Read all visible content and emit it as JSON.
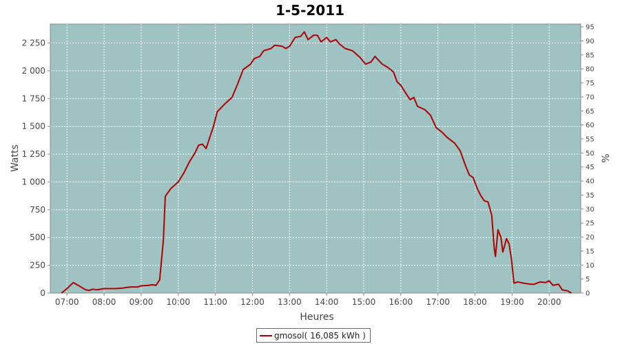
{
  "chart_data": {
    "type": "line",
    "title": "1-5-2011",
    "xlabel": "Heures",
    "ylabel": "Watts",
    "y2label": "%",
    "xlim": [
      6.55,
      20.85
    ],
    "ylim": [
      0,
      2420
    ],
    "y2lim": [
      0,
      96
    ],
    "x_ticks": [
      {
        "x": 7,
        "label": "07:00"
      },
      {
        "x": 8,
        "label": "08:00"
      },
      {
        "x": 9,
        "label": "09:00"
      },
      {
        "x": 10,
        "label": "10:00"
      },
      {
        "x": 11,
        "label": "11:00"
      },
      {
        "x": 12,
        "label": "12:00"
      },
      {
        "x": 13,
        "label": "13:00"
      },
      {
        "x": 14,
        "label": "14:00"
      },
      {
        "x": 15,
        "label": "15:00"
      },
      {
        "x": 16,
        "label": "16:00"
      },
      {
        "x": 17,
        "label": "17:00"
      },
      {
        "x": 18,
        "label": "18:00"
      },
      {
        "x": 19,
        "label": "19:00"
      },
      {
        "x": 20,
        "label": "20:00"
      }
    ],
    "y_ticks": [
      {
        "v": 0,
        "label": "0"
      },
      {
        "v": 250,
        "label": "250"
      },
      {
        "v": 500,
        "label": "500"
      },
      {
        "v": 750,
        "label": "750"
      },
      {
        "v": 1000,
        "label": "1 000"
      },
      {
        "v": 1250,
        "label": "1 250"
      },
      {
        "v": 1500,
        "label": "1 500"
      },
      {
        "v": 1750,
        "label": "1 750"
      },
      {
        "v": 2000,
        "label": "2 000"
      },
      {
        "v": 2250,
        "label": "2 250"
      }
    ],
    "y2_ticks": [
      {
        "v": 0,
        "label": "0"
      },
      {
        "v": 5,
        "label": "5"
      },
      {
        "v": 10,
        "label": "10"
      },
      {
        "v": 15,
        "label": "15"
      },
      {
        "v": 20,
        "label": "20"
      },
      {
        "v": 25,
        "label": "25"
      },
      {
        "v": 30,
        "label": "30"
      },
      {
        "v": 35,
        "label": "35"
      },
      {
        "v": 40,
        "label": "40"
      },
      {
        "v": 45,
        "label": "45"
      },
      {
        "v": 50,
        "label": "50"
      },
      {
        "v": 55,
        "label": "55"
      },
      {
        "v": 60,
        "label": "60"
      },
      {
        "v": 65,
        "label": "65"
      },
      {
        "v": 70,
        "label": "70"
      },
      {
        "v": 75,
        "label": "75"
      },
      {
        "v": 80,
        "label": "80"
      },
      {
        "v": 85,
        "label": "85"
      },
      {
        "v": 90,
        "label": "90"
      },
      {
        "v": 95,
        "label": "95"
      }
    ],
    "grid": true,
    "legend_position": "bottom-center",
    "colors": {
      "plot_bg": "#9fc2c2",
      "line": "#b00000",
      "grid": "#ffffff"
    },
    "series": [
      {
        "name": "gmosol( 16,085 kWh )",
        "points": [
          [
            6.85,
            0
          ],
          [
            7.0,
            40
          ],
          [
            7.17,
            95
          ],
          [
            7.3,
            70
          ],
          [
            7.5,
            30
          ],
          [
            7.6,
            25
          ],
          [
            7.7,
            35
          ],
          [
            7.8,
            30
          ],
          [
            8.0,
            40
          ],
          [
            8.3,
            40
          ],
          [
            8.5,
            45
          ],
          [
            8.7,
            55
          ],
          [
            8.9,
            55
          ],
          [
            9.0,
            65
          ],
          [
            9.2,
            70
          ],
          [
            9.3,
            75
          ],
          [
            9.4,
            70
          ],
          [
            9.5,
            120
          ],
          [
            9.6,
            480
          ],
          [
            9.65,
            870
          ],
          [
            9.8,
            940
          ],
          [
            10.0,
            1000
          ],
          [
            10.15,
            1080
          ],
          [
            10.3,
            1180
          ],
          [
            10.45,
            1260
          ],
          [
            10.55,
            1330
          ],
          [
            10.65,
            1340
          ],
          [
            10.75,
            1300
          ],
          [
            10.85,
            1400
          ],
          [
            10.95,
            1500
          ],
          [
            11.05,
            1630
          ],
          [
            11.25,
            1700
          ],
          [
            11.45,
            1760
          ],
          [
            11.6,
            1880
          ],
          [
            11.75,
            2010
          ],
          [
            11.95,
            2060
          ],
          [
            12.05,
            2110
          ],
          [
            12.2,
            2130
          ],
          [
            12.3,
            2180
          ],
          [
            12.5,
            2200
          ],
          [
            12.6,
            2230
          ],
          [
            12.8,
            2220
          ],
          [
            12.9,
            2200
          ],
          [
            13.0,
            2220
          ],
          [
            13.15,
            2300
          ],
          [
            13.3,
            2310
          ],
          [
            13.4,
            2350
          ],
          [
            13.5,
            2280
          ],
          [
            13.65,
            2320
          ],
          [
            13.75,
            2320
          ],
          [
            13.85,
            2260
          ],
          [
            14.0,
            2300
          ],
          [
            14.1,
            2260
          ],
          [
            14.25,
            2280
          ],
          [
            14.35,
            2240
          ],
          [
            14.5,
            2200
          ],
          [
            14.7,
            2180
          ],
          [
            14.9,
            2120
          ],
          [
            15.05,
            2060
          ],
          [
            15.2,
            2080
          ],
          [
            15.3,
            2130
          ],
          [
            15.5,
            2060
          ],
          [
            15.65,
            2030
          ],
          [
            15.8,
            1990
          ],
          [
            15.9,
            1900
          ],
          [
            16.0,
            1870
          ],
          [
            16.15,
            1790
          ],
          [
            16.25,
            1740
          ],
          [
            16.35,
            1760
          ],
          [
            16.45,
            1680
          ],
          [
            16.65,
            1650
          ],
          [
            16.8,
            1600
          ],
          [
            16.95,
            1490
          ],
          [
            17.1,
            1450
          ],
          [
            17.25,
            1400
          ],
          [
            17.45,
            1350
          ],
          [
            17.6,
            1280
          ],
          [
            17.75,
            1140
          ],
          [
            17.85,
            1060
          ],
          [
            17.95,
            1040
          ],
          [
            18.05,
            950
          ],
          [
            18.15,
            880
          ],
          [
            18.25,
            830
          ],
          [
            18.35,
            820
          ],
          [
            18.45,
            700
          ],
          [
            18.52,
            400
          ],
          [
            18.55,
            330
          ],
          [
            18.62,
            570
          ],
          [
            18.7,
            500
          ],
          [
            18.75,
            370
          ],
          [
            18.85,
            490
          ],
          [
            18.92,
            440
          ],
          [
            18.98,
            310
          ],
          [
            19.05,
            90
          ],
          [
            19.15,
            100
          ],
          [
            19.3,
            90
          ],
          [
            19.5,
            80
          ],
          [
            19.6,
            80
          ],
          [
            19.75,
            100
          ],
          [
            19.9,
            95
          ],
          [
            20.0,
            110
          ],
          [
            20.1,
            70
          ],
          [
            20.25,
            80
          ],
          [
            20.35,
            30
          ],
          [
            20.5,
            20
          ],
          [
            20.6,
            0
          ]
        ]
      }
    ]
  }
}
